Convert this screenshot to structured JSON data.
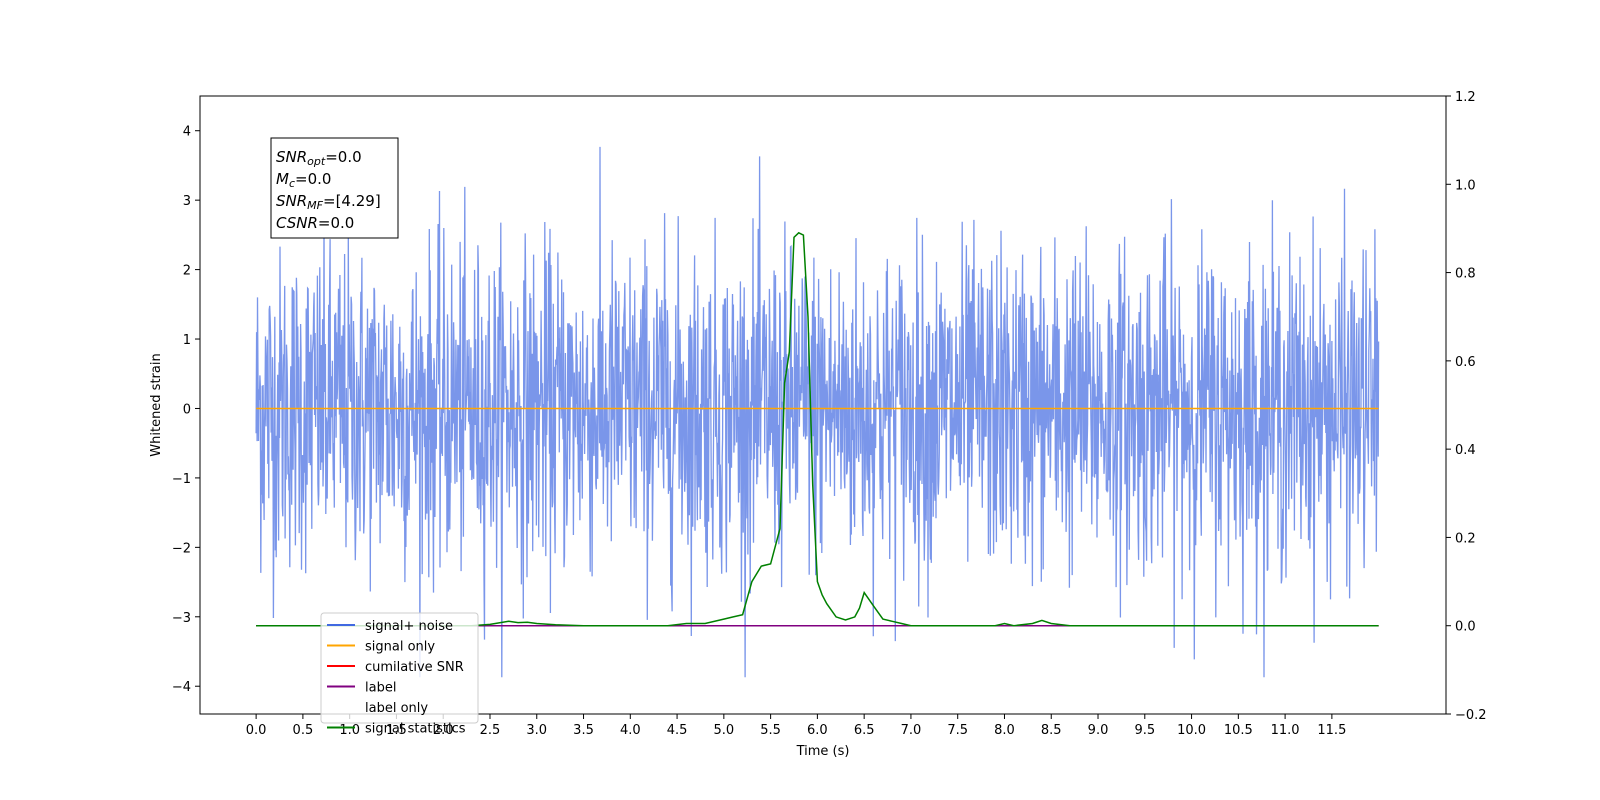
{
  "chart_data": {
    "type": "line",
    "title": "",
    "xlabel": "Time (s)",
    "ylabel": "Whitened strain",
    "y2label": "",
    "xlim": [
      -0.6,
      12.72
    ],
    "ylim": [
      -4.4,
      4.5
    ],
    "y2lim": [
      -0.2,
      1.2
    ],
    "x_ticks": [
      "0.0",
      "0.5",
      "1.0",
      "1.5",
      "2.0",
      "2.5",
      "3.0",
      "3.5",
      "4.0",
      "4.5",
      "5.0",
      "5.5",
      "6.0",
      "6.5",
      "7.0",
      "7.5",
      "8.0",
      "8.5",
      "9.0",
      "9.5",
      "10.0",
      "10.5",
      "11.0",
      "11.5"
    ],
    "x_tick_values": [
      0.0,
      0.5,
      1.0,
      1.5,
      2.0,
      2.5,
      3.0,
      3.5,
      4.0,
      4.5,
      5.0,
      5.5,
      6.0,
      6.5,
      7.0,
      7.5,
      8.0,
      8.5,
      9.0,
      9.5,
      10.0,
      10.5,
      11.0,
      11.5
    ],
    "y_ticks": [
      "4",
      "3",
      "2",
      "1",
      "0",
      "−1",
      "−2",
      "−3",
      "−4"
    ],
    "y_tick_values": [
      4,
      3,
      2,
      1,
      0,
      -1,
      -2,
      -3,
      -4
    ],
    "y2_ticks": [
      "1.2",
      "1.0",
      "0.8",
      "0.6",
      "0.4",
      "0.2",
      "0.0",
      "−0.2"
    ],
    "y2_tick_values": [
      1.2,
      1.0,
      0.8,
      0.6,
      0.4,
      0.2,
      0.0,
      -0.2
    ],
    "grid": false,
    "legend_position": "lower-left",
    "annotation": {
      "lines": [
        {
          "sym": "SNR",
          "sub": "opt",
          "value": "=0.0"
        },
        {
          "sym": "M",
          "sub": "c",
          "value": "=0.0"
        },
        {
          "sym": "SNR",
          "sub": "MF",
          "value": "=[4.29]"
        },
        {
          "sym": "CSNR",
          "sub": "",
          "value": "=0.0"
        }
      ]
    },
    "series": [
      {
        "name": "signal+ noise",
        "color": "#4169e1",
        "axis": "left",
        "style": "noise",
        "x_range": [
          0.0,
          12.0
        ],
        "y_envelope": [
          -3.87,
          4.13
        ]
      },
      {
        "name": "signal only",
        "color": "#ffa500",
        "axis": "left",
        "x": [
          0.0,
          12.0
        ],
        "y": [
          0.0,
          0.0
        ]
      },
      {
        "name": "cumilative SNR",
        "color": "#ff0000",
        "axis": "right",
        "x": [
          0.0,
          12.0
        ],
        "y": [
          0.0,
          0.0
        ]
      },
      {
        "name": "label",
        "color": "#800080",
        "axis": "right",
        "x": [
          0.0,
          12.0
        ],
        "y": [
          0.0,
          0.0
        ]
      },
      {
        "name": "label only",
        "color": "#ffffff",
        "axis": "right",
        "x": [
          0.0,
          12.0
        ],
        "y": [
          0.0,
          0.0
        ]
      },
      {
        "name": "signal statistics",
        "color": "#008000",
        "axis": "right",
        "x": [
          0.0,
          1.0,
          2.0,
          2.3,
          2.5,
          2.7,
          2.8,
          2.9,
          3.0,
          3.2,
          3.5,
          4.0,
          4.4,
          4.6,
          4.8,
          5.0,
          5.1,
          5.2,
          5.3,
          5.4,
          5.5,
          5.6,
          5.65,
          5.7,
          5.75,
          5.8,
          5.85,
          5.9,
          5.95,
          6.0,
          6.05,
          6.1,
          6.2,
          6.3,
          6.4,
          6.45,
          6.5,
          6.6,
          6.7,
          6.8,
          6.9,
          7.0,
          7.5,
          7.9,
          8.0,
          8.1,
          8.3,
          8.4,
          8.5,
          8.7,
          9.0,
          10.0,
          11.0,
          12.0
        ],
        "y": [
          0.0,
          0.0,
          0.0,
          0.0,
          0.003,
          0.01,
          0.007,
          0.008,
          0.005,
          0.002,
          0.0,
          0.0,
          0.0,
          0.005,
          0.005,
          0.015,
          0.02,
          0.025,
          0.1,
          0.135,
          0.14,
          0.22,
          0.55,
          0.62,
          0.88,
          0.89,
          0.885,
          0.7,
          0.32,
          0.1,
          0.07,
          0.05,
          0.02,
          0.013,
          0.02,
          0.04,
          0.075,
          0.045,
          0.015,
          0.01,
          0.005,
          0.0,
          0.0,
          0.0,
          0.005,
          0.0,
          0.005,
          0.012,
          0.005,
          0.0,
          0.0,
          0.0,
          0.0,
          0.0
        ]
      }
    ]
  }
}
